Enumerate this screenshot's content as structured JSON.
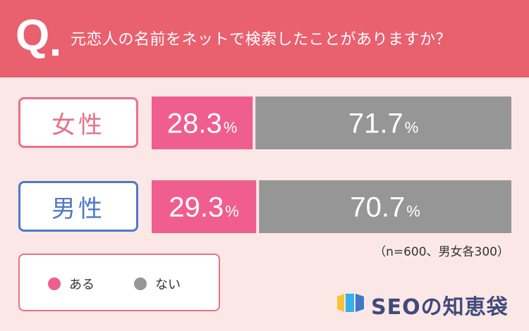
{
  "header": {
    "q_mark": "Q",
    "question": "元恋人の名前をネットで検索したことがありますか？"
  },
  "labels": {
    "female": "女性",
    "male": "男性"
  },
  "chart_data": {
    "type": "bar",
    "orientation": "horizontal-stacked-100",
    "categories": [
      "女性",
      "男性"
    ],
    "series": [
      {
        "name": "ある",
        "values": [
          28.3,
          29.3
        ],
        "color": "#ef5e8e"
      },
      {
        "name": "ない",
        "values": [
          71.7,
          70.7
        ],
        "color": "#969696"
      }
    ],
    "value_labels": [
      [
        "28.3",
        "71.7"
      ],
      [
        "29.3",
        "70.7"
      ]
    ],
    "unit": "%",
    "legend_placement": "bottom-left"
  },
  "note": "（n=600、男女各300）",
  "legend": {
    "items": [
      {
        "label": "ある",
        "color": "#ef5e8e"
      },
      {
        "label": "ない",
        "color": "#969696"
      }
    ]
  },
  "logo": {
    "text": "SEOの知恵袋",
    "icon_colors": [
      "#f6c338",
      "#35b1e8",
      "#3f78c8"
    ]
  }
}
